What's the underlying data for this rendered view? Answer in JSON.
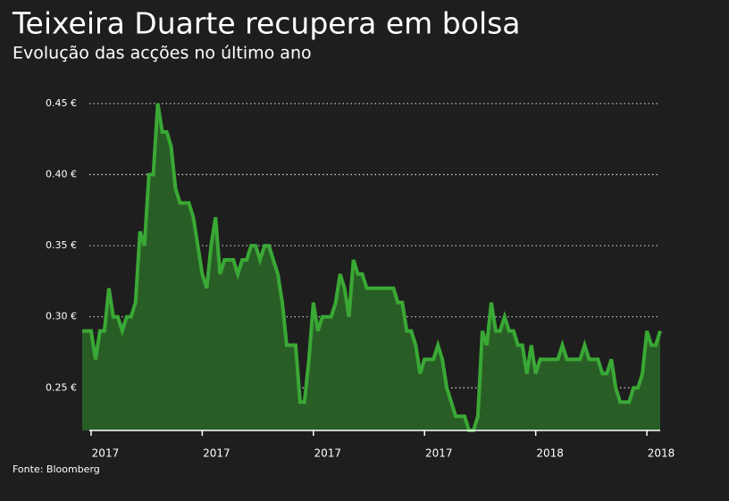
{
  "chart_data": {
    "type": "area",
    "title": "Teixeira Duarte recupera em bolsa",
    "subtitle": "Evolução das acções no último ano",
    "source": "Fonte: Bloomberg",
    "categories": [
      null,
      null,
      "2017",
      null,
      null,
      null,
      null,
      null,
      null,
      null,
      null,
      null,
      null,
      null,
      null,
      null,
      null,
      null,
      null,
      null,
      null,
      null,
      null,
      null,
      null,
      null,
      null,
      "2017",
      null,
      null,
      null,
      null,
      null,
      null,
      null,
      null,
      null,
      null,
      null,
      null,
      null,
      null,
      null,
      null,
      null,
      null,
      null,
      null,
      null,
      null,
      null,
      null,
      "2017",
      null,
      null,
      null,
      null,
      null,
      null,
      null,
      null,
      null,
      null,
      null,
      null,
      null,
      null,
      null,
      null,
      null,
      null,
      null,
      null,
      null,
      null,
      null,
      null,
      "2017",
      null,
      null,
      null,
      null,
      null,
      null,
      null,
      null,
      null,
      null,
      null,
      null,
      null,
      null,
      null,
      null,
      null,
      null,
      null,
      null,
      null,
      null,
      null,
      null,
      "2018",
      null,
      null,
      null,
      null,
      null,
      null,
      null,
      null,
      null,
      null,
      null,
      null,
      null,
      null,
      null,
      null,
      null,
      null,
      null,
      null,
      null,
      null,
      null,
      null,
      "2018",
      null,
      null,
      null
    ],
    "series": [
      {
        "name": "Teixeira Duarte",
        "color": "#3aa835",
        "fill": "#285e26",
        "values": [
          0.29,
          0.29,
          0.29,
          0.27,
          0.29,
          0.29,
          0.32,
          0.3,
          0.3,
          0.29,
          0.3,
          0.3,
          0.31,
          0.36,
          0.35,
          0.4,
          0.4,
          0.45,
          0.43,
          0.43,
          0.42,
          0.39,
          0.38,
          0.38,
          0.38,
          0.37,
          0.35,
          0.33,
          0.32,
          0.35,
          0.37,
          0.33,
          0.34,
          0.34,
          0.34,
          0.33,
          0.34,
          0.34,
          0.35,
          0.35,
          0.34,
          0.35,
          0.35,
          0.34,
          0.33,
          0.31,
          0.28,
          0.28,
          0.28,
          0.24,
          0.24,
          0.27,
          0.31,
          0.29,
          0.3,
          0.3,
          0.3,
          0.31,
          0.33,
          0.32,
          0.3,
          0.34,
          0.33,
          0.33,
          0.32,
          0.32,
          0.32,
          0.32,
          0.32,
          0.32,
          0.32,
          0.31,
          0.31,
          0.29,
          0.29,
          0.28,
          0.26,
          0.27,
          0.27,
          0.27,
          0.28,
          0.27,
          0.25,
          0.24,
          0.23,
          0.23,
          0.23,
          0.22,
          0.22,
          0.23,
          0.29,
          0.28,
          0.31,
          0.29,
          0.29,
          0.3,
          0.29,
          0.29,
          0.28,
          0.28,
          0.26,
          0.28,
          0.26,
          0.27,
          0.27,
          0.27,
          0.27,
          0.27,
          0.28,
          0.27,
          0.27,
          0.27,
          0.27,
          0.28,
          0.27,
          0.27,
          0.27,
          0.26,
          0.26,
          0.27,
          0.25,
          0.24,
          0.24,
          0.24,
          0.25,
          0.25,
          0.26,
          0.29,
          0.28,
          0.28,
          0.29
        ]
      }
    ],
    "ylim": [
      0.22,
      0.46
    ],
    "yticks": [
      {
        "value": 0.25,
        "label": "0.25 €"
      },
      {
        "value": 0.3,
        "label": "0.30 €"
      },
      {
        "value": 0.35,
        "label": "0.35 €"
      },
      {
        "value": 0.4,
        "label": "0.40 €"
      },
      {
        "value": 0.45,
        "label": "0.45 €"
      }
    ],
    "grid": true
  }
}
